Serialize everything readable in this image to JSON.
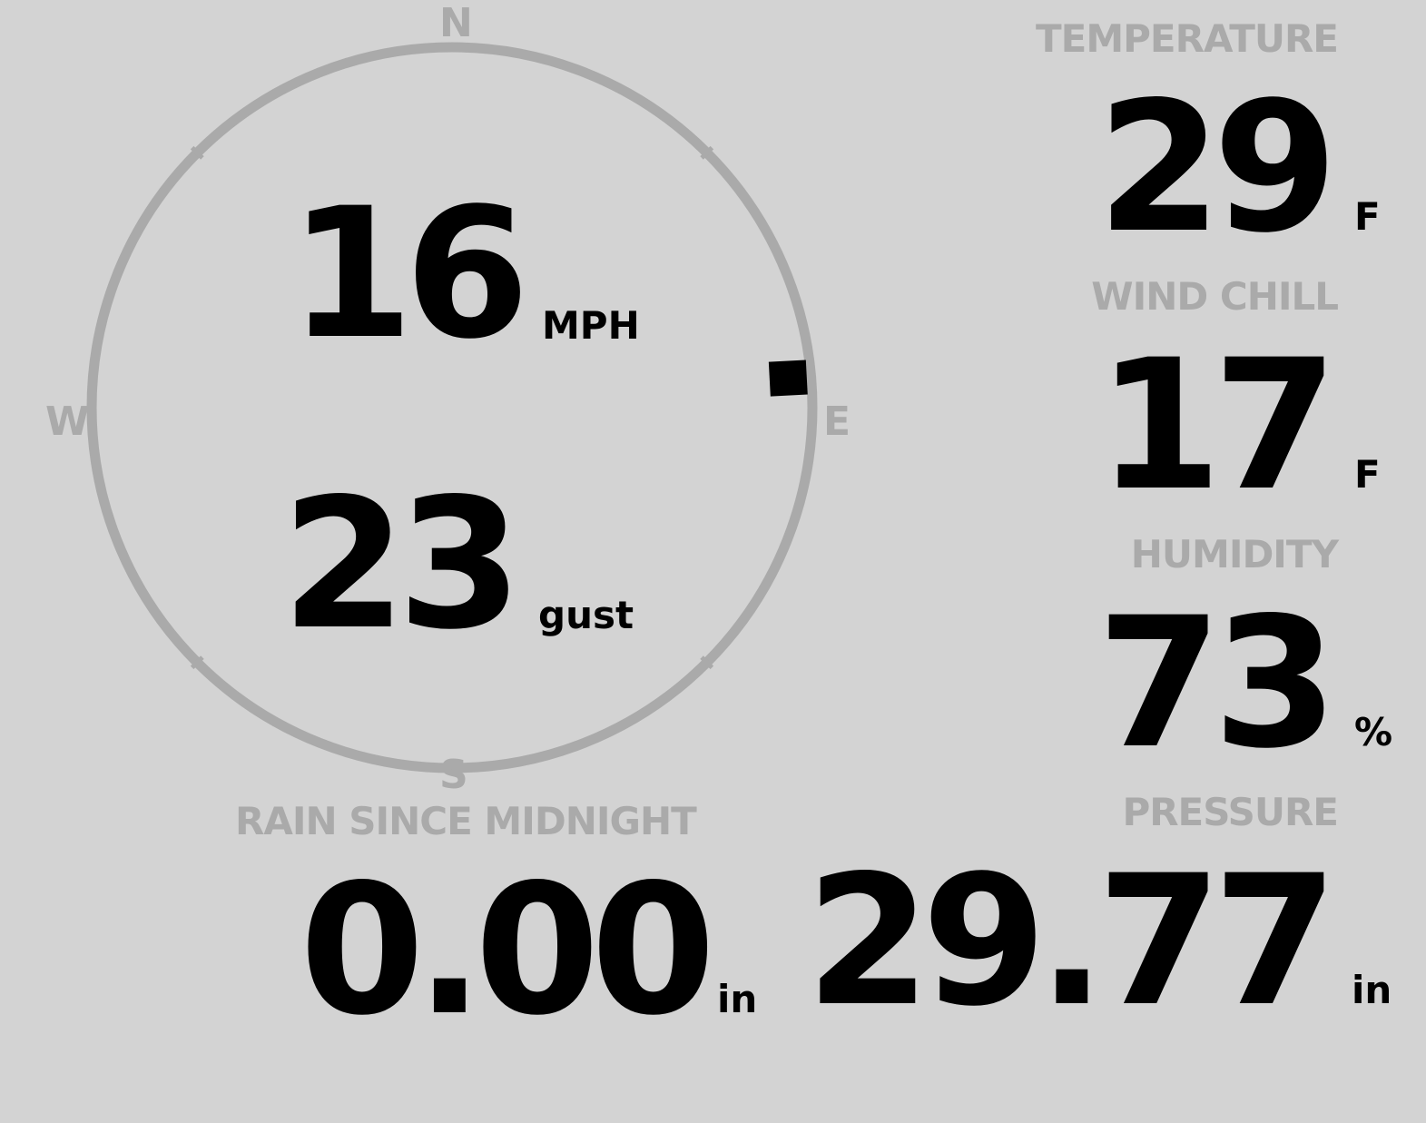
{
  "wind": {
    "speed": "16",
    "speed_unit": "MPH",
    "gust": "23",
    "gust_label": "gust",
    "direction_deg": 87,
    "compass": {
      "n": "N",
      "e": "E",
      "s": "S",
      "w": "W"
    }
  },
  "temperature": {
    "label": "TEMPERATURE",
    "value": "29",
    "unit": "F"
  },
  "wind_chill": {
    "label": "WIND CHILL",
    "value": "17",
    "unit": "F"
  },
  "humidity": {
    "label": "HUMIDITY",
    "value": "73",
    "unit": "%"
  },
  "pressure": {
    "label": "PRESSURE",
    "value": "29.77",
    "unit": "in"
  },
  "rain": {
    "label": "RAIN SINCE MIDNIGHT",
    "value": "0.00",
    "unit": "in"
  },
  "colors": {
    "background": "#d3d3d3",
    "label": "#aaaaaa",
    "value": "#000000",
    "dial": "#aaaaaa"
  }
}
